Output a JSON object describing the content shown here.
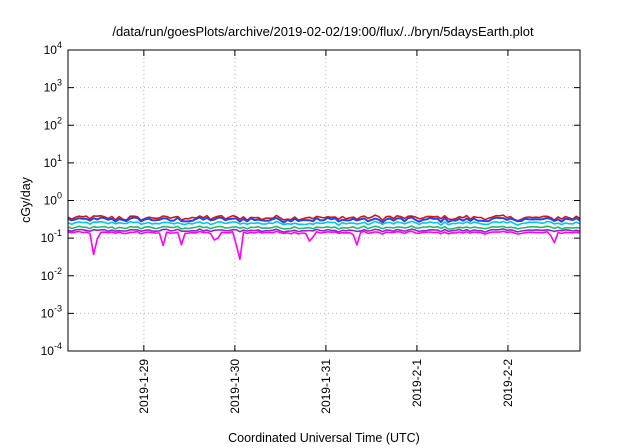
{
  "chart_data": {
    "type": "line",
    "title": "/data/run/goesPlots/archive/2019-02-02/19:00/flux/../bryn/5daysEarth.plot",
    "xlabel": "Coordinated Universal Time (UTC)",
    "ylabel": "cGy/day",
    "yscale": "log",
    "ylim": [
      0.0001,
      10000
    ],
    "xlim": [
      "2019-01-28T04:00",
      "2019-02-02T19:00"
    ],
    "x_ticks": [
      {
        "x": "2019-01-29T00:00",
        "label": "2019-1-29"
      },
      {
        "x": "2019-01-30T00:00",
        "label": "2019-1-30"
      },
      {
        "x": "2019-01-31T00:00",
        "label": "2019-1-31"
      },
      {
        "x": "2019-02-01T00:00",
        "label": "2019-2-1"
      },
      {
        "x": "2019-02-02T00:00",
        "label": "2019-2-2"
      }
    ],
    "y_ticks": [
      {
        "value": 0.0001,
        "base": "10",
        "exp": "-4"
      },
      {
        "value": 0.001,
        "base": "10",
        "exp": "-3"
      },
      {
        "value": 0.01,
        "base": "10",
        "exp": "-2"
      },
      {
        "value": 0.1,
        "base": "10",
        "exp": "-1"
      },
      {
        "value": 1,
        "base": "10",
        "exp": "0"
      },
      {
        "value": 10,
        "base": "10",
        "exp": "1"
      },
      {
        "value": 100,
        "base": "10",
        "exp": "2"
      },
      {
        "value": 1000,
        "base": "10",
        "exp": "3"
      },
      {
        "value": 10000,
        "base": "10",
        "exp": "4"
      }
    ],
    "grid": true,
    "legend": "none",
    "series": [
      {
        "color": "#dd1111",
        "base": 0.35,
        "jitter": 0.18,
        "dips": []
      },
      {
        "color": "#2244ee",
        "base": 0.31,
        "jitter": 0.16,
        "dips": []
      },
      {
        "color": "#00c8e8",
        "base": 0.25,
        "jitter": 0.12,
        "dips": []
      },
      {
        "color": "#22bb66",
        "base": 0.19,
        "jitter": 0.1,
        "dips": []
      },
      {
        "color": "#9922cc",
        "base": 0.16,
        "jitter": 0.09,
        "dips": []
      },
      {
        "color": "#ff00ff",
        "base": 0.14,
        "jitter": 0.08,
        "dips": [
          {
            "t": "2019-01-28T11:00",
            "value": 0.022
          },
          {
            "t": "2019-01-29T05:00",
            "value": 0.06
          },
          {
            "t": "2019-01-29T10:00",
            "value": 0.06
          },
          {
            "t": "2019-01-29T19:00",
            "value": 0.06
          },
          {
            "t": "2019-01-30T01:00",
            "value": 0.011
          },
          {
            "t": "2019-01-30T20:00",
            "value": 0.06
          },
          {
            "t": "2019-01-31T08:00",
            "value": 0.055
          },
          {
            "t": "2019-02-02T12:00",
            "value": 0.06
          }
        ]
      }
    ]
  }
}
